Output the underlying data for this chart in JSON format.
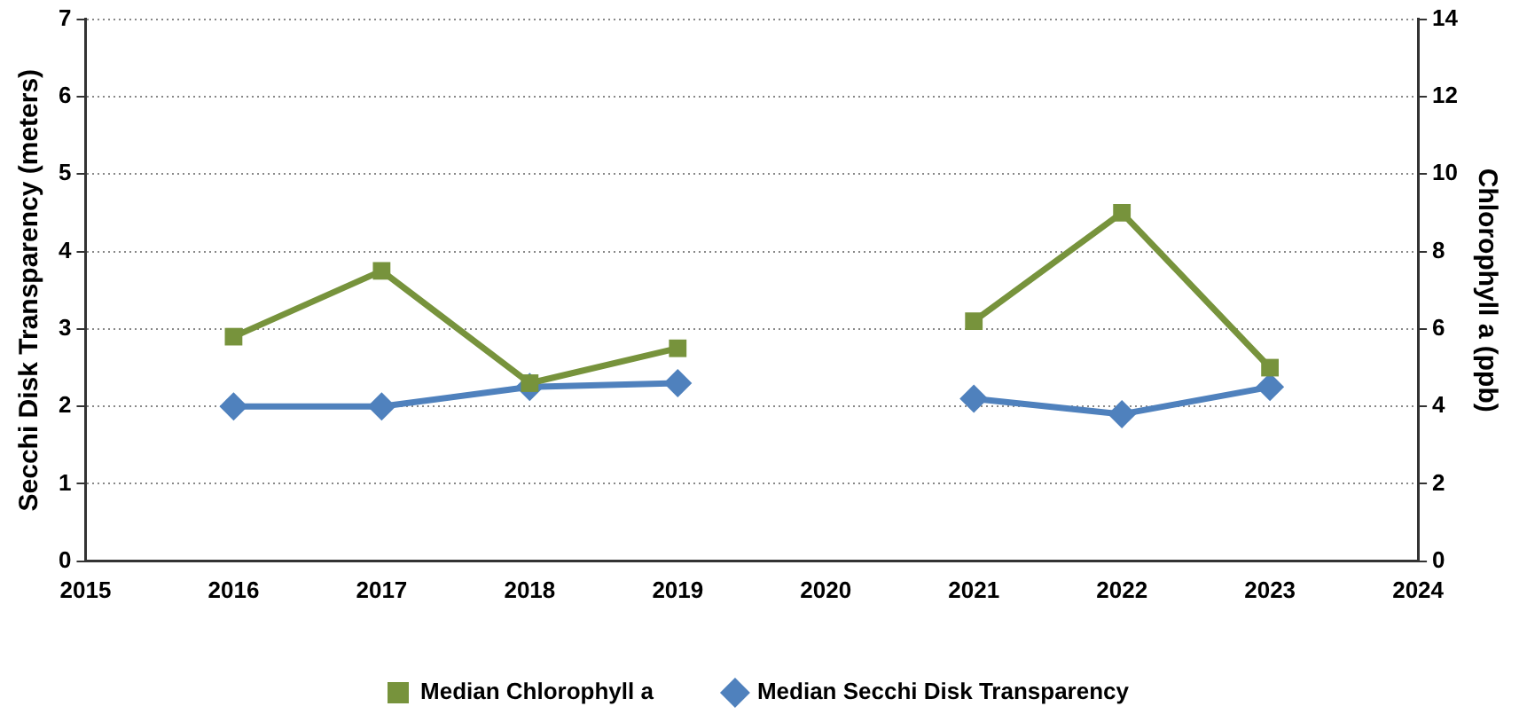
{
  "chart_data": {
    "type": "line",
    "ylabel": "Secchi Disk Transparency (meters)",
    "y2label": "Chlorophyll a (ppb)",
    "x": [
      2016,
      2017,
      2018,
      2019,
      2020,
      2021,
      2022,
      2023
    ],
    "series": [
      {
        "name": "Median Secchi Disk Transparency",
        "color": "#4f81bd",
        "marker": "diamond",
        "values": [
          2.0,
          2.0,
          2.25,
          2.3,
          null,
          2.1,
          1.9,
          2.25
        ]
      },
      {
        "name": "Median Chlorophyll a",
        "color": "#77933c",
        "marker": "square",
        "axis": "y2",
        "values": [
          5.8,
          7.5,
          4.6,
          5.5,
          null,
          6.2,
          9.0,
          5.0
        ]
      }
    ],
    "xlim": [
      2015,
      2024
    ],
    "xticks": [
      2015,
      2016,
      2017,
      2018,
      2019,
      2020,
      2021,
      2022,
      2023,
      2024
    ],
    "ylim": [
      0,
      7
    ],
    "yticks": [
      0,
      1,
      2,
      3,
      4,
      5,
      6,
      7
    ],
    "y2lim": [
      0,
      14
    ],
    "y2ticks": [
      0,
      2,
      4,
      6,
      8,
      10,
      12,
      14
    ],
    "grid": "y",
    "legend": "bottom",
    "line_style": "solid"
  }
}
